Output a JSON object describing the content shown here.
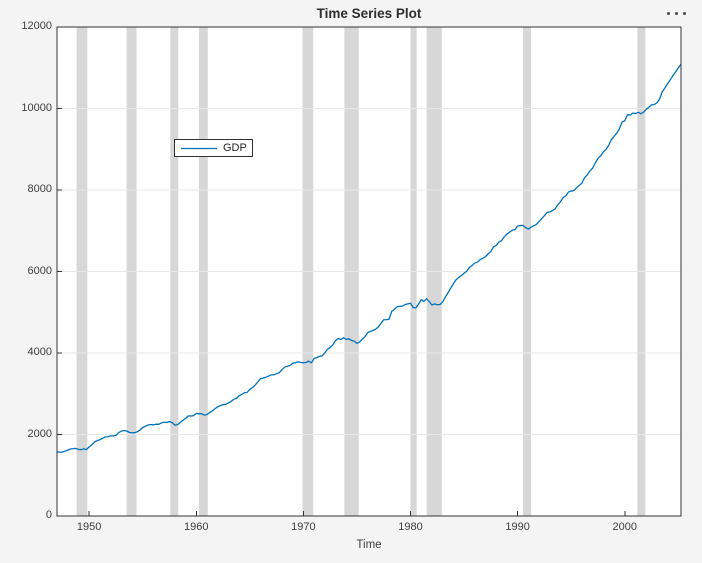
{
  "toolbar": {
    "more_options": "more options (ellipsis)"
  },
  "chart_data": {
    "type": "line",
    "title": "Time Series Plot",
    "xlabel": "Time",
    "ylabel": "",
    "xlim": [
      1947.0,
      2005.25
    ],
    "ylim": [
      0,
      12000
    ],
    "xticks": [
      1950,
      1960,
      1970,
      1980,
      1990,
      2000
    ],
    "yticks": [
      0,
      2000,
      4000,
      6000,
      8000,
      10000,
      12000
    ],
    "grid": "horizontal-only",
    "legend": {
      "entries": [
        "GDP"
      ],
      "position": "upper-left-inside"
    },
    "colors": {
      "line": "#0072BD",
      "recession_band": "#d7d7d7",
      "grid": "#e8e8e8",
      "axis": "#333333",
      "plot_bg": "#ffffff",
      "figure_bg": "#f4f4f4"
    },
    "recession_bands": [
      [
        1948.83,
        1949.83
      ],
      [
        1953.5,
        1954.42
      ],
      [
        1957.58,
        1958.33
      ],
      [
        1960.25,
        1961.08
      ],
      [
        1969.92,
        1970.92
      ],
      [
        1973.83,
        1975.17
      ],
      [
        1980.0,
        1980.58
      ],
      [
        1981.5,
        1982.92
      ],
      [
        1990.5,
        1991.25
      ],
      [
        2001.17,
        2001.92
      ]
    ],
    "series": [
      {
        "name": "GDP",
        "start_x": 1947.0,
        "x_step": 0.25,
        "values": [
          1570.5,
          1568.7,
          1568.0,
          1590.9,
          1616.1,
          1644.6,
          1654.1,
          1658.0,
          1633.2,
          1628.4,
          1646.7,
          1629.9,
          1696.8,
          1747.3,
          1815.8,
          1848.9,
          1871.3,
          1903.1,
          1941.1,
          1944.4,
          1964.7,
          1966.0,
          1978.8,
          2043.8,
          2082.3,
          2098.1,
          2085.4,
          2052.5,
          2042.4,
          2044.3,
          2066.9,
          2107.8,
          2168.5,
          2204.0,
          2233.4,
          2245.3,
          2234.8,
          2252.5,
          2249.8,
          2286.5,
          2300.3,
          2294.6,
          2317.0,
          2292.5,
          2230.4,
          2243.4,
          2295.2,
          2348.0,
          2392.9,
          2455.7,
          2453.7,
          2462.0,
          2517.4,
          2504.8,
          2508.7,
          2476.2,
          2491.2,
          2538.0,
          2579.4,
          2631.2,
          2679.0,
          2708.6,
          2733.4,
          2740.3,
          2775.6,
          2809.5,
          2863.5,
          2885.8,
          2950.8,
          2984.6,
          3025.5,
          3033.6,
          3108.2,
          3150.2,
          3214.1,
          3291.8,
          3372.3,
          3384.0,
          3406.3,
          3433.7,
          3464.1,
          3464.3,
          3491.8,
          3518.2,
          3590.7,
          3651.6,
          3676.5,
          3692.0,
          3750.2,
          3760.9,
          3784.2,
          3766.3,
          3760.0,
          3767.1,
          3800.5,
          3759.8,
          3864.1,
          3885.9,
          3916.7,
          3927.9,
          4000.8,
          4094.3,
          4133.1,
          4201.8,
          4305.6,
          4355.1,
          4331.9,
          4373.3,
          4335.4,
          4347.9,
          4305.8,
          4288.8,
          4237.6,
          4268.6,
          4340.9,
          4397.8,
          4496.8,
          4530.3,
          4552.0,
          4584.6,
          4640.0,
          4731.1,
          4815.8,
          4815.3,
          4830.8,
          5021.2,
          5070.7,
          5137.4,
          5147.4,
          5152.3,
          5189.4,
          5204.7,
          5221.3,
          5115.9,
          5107.4,
          5202.1,
          5307.5,
          5266.1,
          5329.8,
          5263.4,
          5177.1,
          5204.9,
          5185.2,
          5189.8,
          5253.8,
          5372.3,
          5478.4,
          5590.5,
          5699.8,
          5797.9,
          5854.3,
          5902.4,
          5956.9,
          6007.8,
          6101.7,
          6148.6,
          6207.4,
          6232.0,
          6291.7,
          6323.4,
          6365.0,
          6435.0,
          6493.4,
          6606.8,
          6639.1,
          6723.5,
          6759.4,
          6848.6,
          6918.1,
          6963.5,
          7013.1,
          7030.9,
          7112.1,
          7130.3,
          7130.8,
          7076.9,
          7040.8,
          7086.5,
          7120.7,
          7154.1,
          7228.2,
          7297.9,
          7369.5,
          7450.7,
          7459.7,
          7497.5,
          7536.0,
          7637.4,
          7715.1,
          7815.7,
          7859.5,
          7951.6,
          7973.7,
          7988.0,
          8053.1,
          8112.0,
          8169.2,
          8303.1,
          8372.7,
          8470.6,
          8536.1,
          8665.8,
          8773.7,
          8838.4,
          8936.2,
          8995.3,
          9098.9,
          9237.1,
          9315.5,
          9392.6,
          9502.2,
          9671.1,
          9695.6,
          9847.9,
          9836.6,
          9887.7,
          9875.6,
          9905.9,
          9871.1,
          9910.0,
          9977.3,
          10031.6,
          10090.7,
          10095.8,
          10138.6,
          10230.4,
          10410.9,
          10502.6,
          10612.5,
          10704.1,
          10808.9,
          10897.1,
          10999.3,
          11089.2
        ]
      }
    ]
  }
}
